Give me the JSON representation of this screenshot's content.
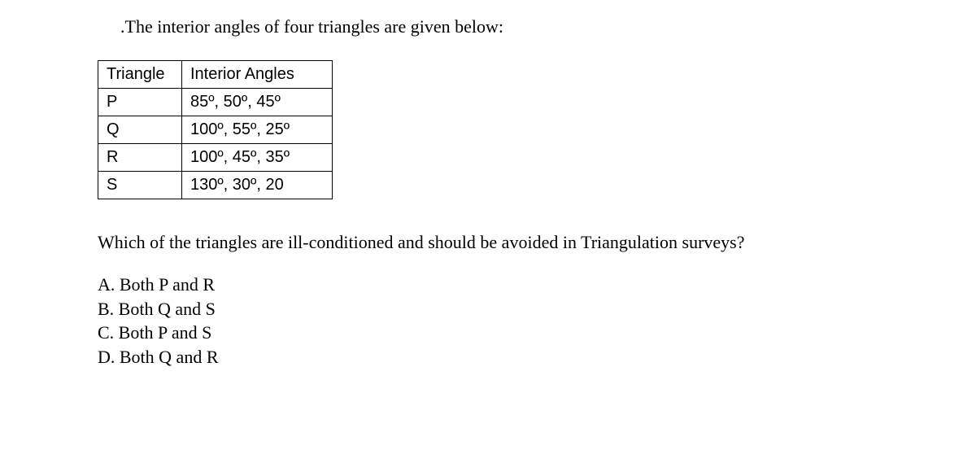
{
  "intro_text": ".The interior angles of four triangles are given below:",
  "table": {
    "headers": {
      "col1": "Triangle",
      "col2": "Interior Angles"
    },
    "rows": [
      {
        "triangle": "P",
        "angles": "85º, 50º, 45º"
      },
      {
        "triangle": "Q",
        "angles": "100º, 55º, 25º"
      },
      {
        "triangle": "R",
        "angles": "100º, 45º, 35º"
      },
      {
        "triangle": "S",
        "angles": "130º, 30º, 20"
      }
    ]
  },
  "question_text": "Which of the triangles are ill-conditioned and should be avoided in Triangulation surveys?",
  "options": {
    "a": "A. Both P and R",
    "b": "B. Both Q and S",
    "c": "C. Both P and S",
    "d": "D. Both Q and R"
  },
  "styling": {
    "background_color": "#ffffff",
    "text_color": "#000000",
    "border_color": "#000000",
    "intro_font_family": "Times New Roman",
    "table_font_family": "Verdana",
    "table_border_width": 1.5,
    "intro_fontsize": 22,
    "table_fontsize": 20,
    "question_fontsize": 22,
    "options_fontsize": 22
  }
}
